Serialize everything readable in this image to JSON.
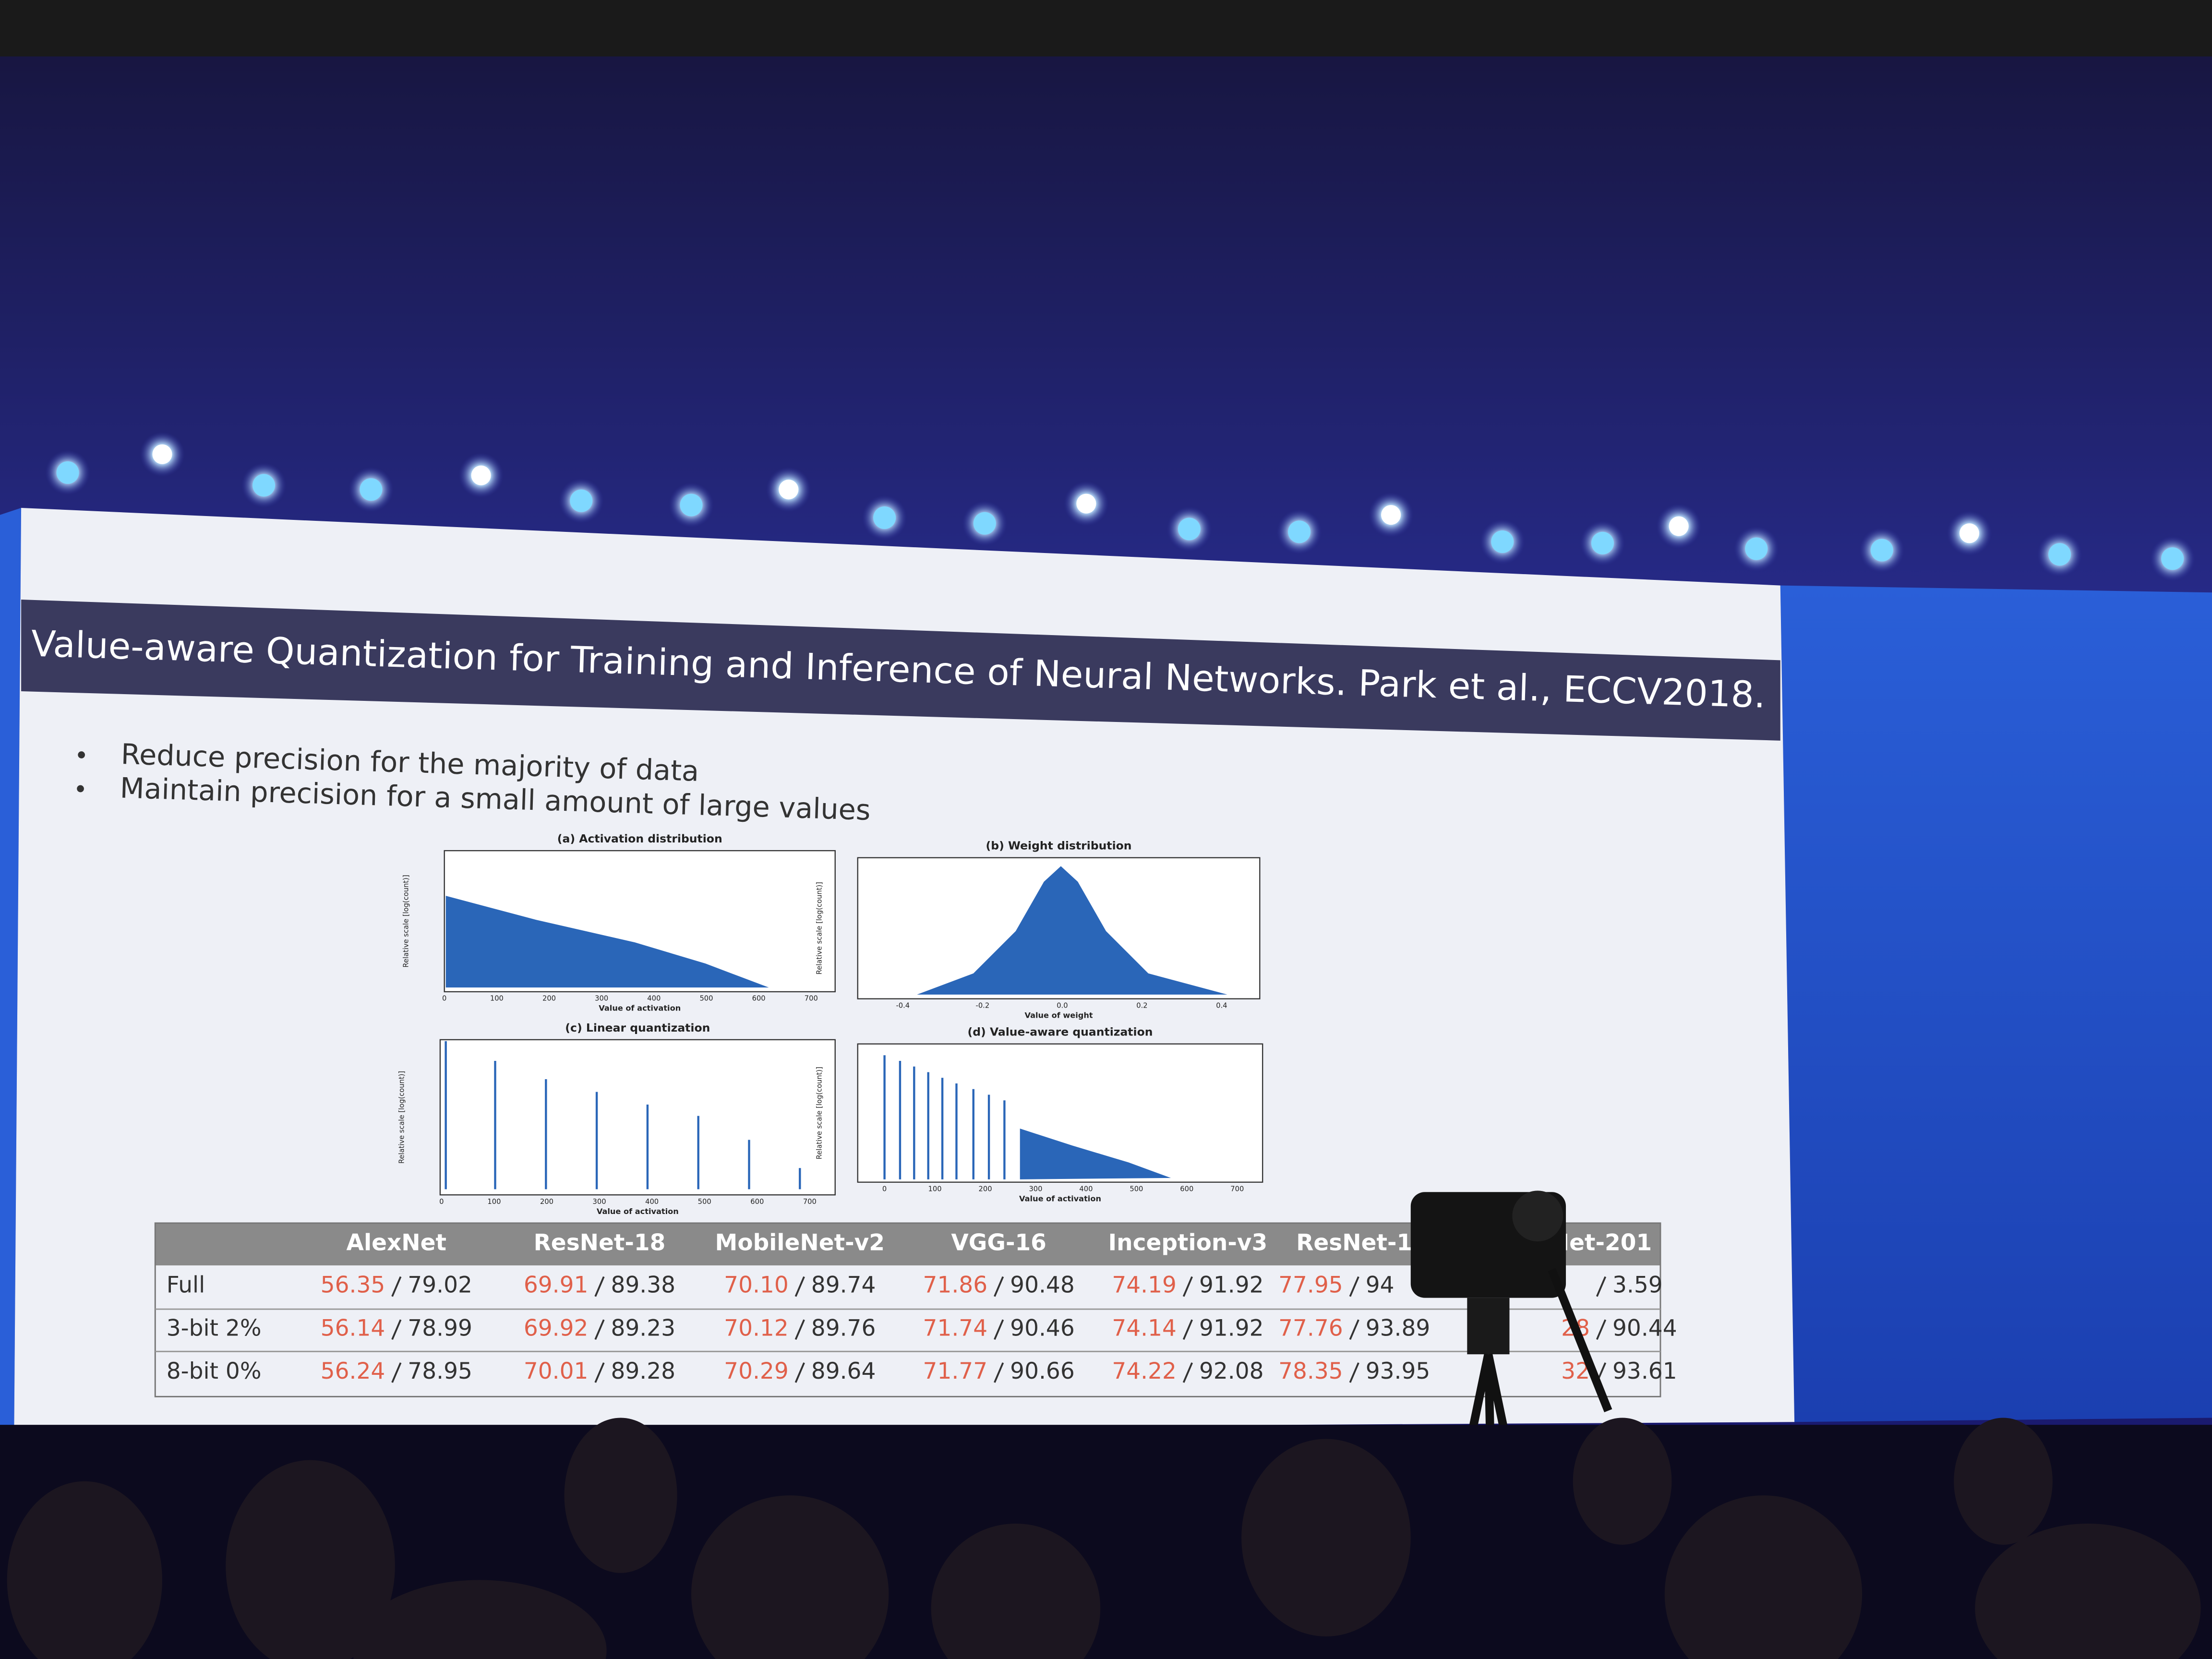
{
  "slide": {
    "title": "Value-aware Quantization for Training and Inference of Neural Networks. Park et al., ECCV2018.",
    "bullets": [
      "Reduce precision for the majority of data",
      "Maintain precision for a small amount of large values"
    ],
    "figures": [
      {
        "title": "(a) Activation distribution",
        "ylabel": "Relative scale [log(count)]",
        "xlabel": "Value of activation",
        "xticks": [
          "0",
          "100",
          "200",
          "300",
          "400",
          "500",
          "600",
          "700"
        ]
      },
      {
        "title": "(b) Weight distribution",
        "ylabel": "Relative scale [log(count)]",
        "xlabel": "Value of weight",
        "xticks": [
          "-0.4",
          "-0.2",
          "0.0",
          "0.2",
          "0.4"
        ]
      },
      {
        "title": "(c) Linear quantization",
        "ylabel": "Relative scale [log(count)]",
        "xlabel": "Value of activation",
        "xticks": [
          "0",
          "100",
          "200",
          "300",
          "400",
          "500",
          "600",
          "700"
        ]
      },
      {
        "title": "(d) Value-aware quantization",
        "ylabel": "Relative scale [log(count)]",
        "xlabel": "Value of activation",
        "xticks": [
          "0",
          "100",
          "200",
          "300",
          "400",
          "500",
          "600",
          "700"
        ]
      }
    ],
    "table": {
      "header": [
        "AlexNet",
        "ResNet-18",
        "MobileNet-v2",
        "VGG-16",
        "Inception-v3",
        "ResNet-1",
        "Net-201"
      ],
      "rows": [
        {
          "label": "Full",
          "cells": [
            [
              "56.35",
              "79.02"
            ],
            [
              "69.91",
              "89.38"
            ],
            [
              "70.10",
              "89.74"
            ],
            [
              "71.86",
              "90.48"
            ],
            [
              "74.19",
              "91.92"
            ],
            [
              "77.95",
              "94"
            ],
            [
              "3.59"
            ]
          ]
        },
        {
          "label": "3-bit 2%",
          "cells": [
            [
              "56.14",
              "78.99"
            ],
            [
              "69.92",
              "89.23"
            ],
            [
              "70.12",
              "89.76"
            ],
            [
              "71.74",
              "90.46"
            ],
            [
              "74.14",
              "91.92"
            ],
            [
              "77.76",
              "93.89"
            ],
            [
              "28",
              "90.44"
            ]
          ]
        },
        {
          "label": "8-bit 0%",
          "cells": [
            [
              "56.24",
              "78.95"
            ],
            [
              "70.01",
              "89.28"
            ],
            [
              "70.29",
              "89.64"
            ],
            [
              "71.77",
              "90.66"
            ],
            [
              "74.22",
              "92.08"
            ],
            [
              "78.35",
              "93.95"
            ],
            [
              "32",
              "93.61"
            ]
          ]
        }
      ]
    }
  }
}
